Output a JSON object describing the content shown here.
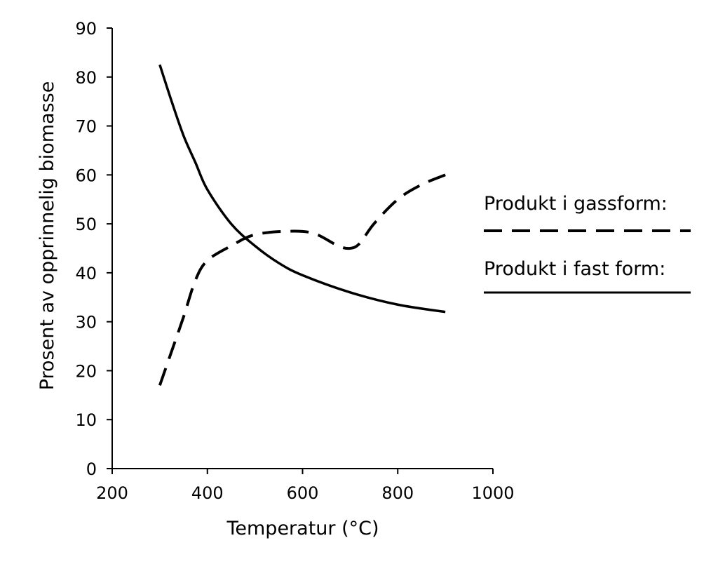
{
  "chart_data": {
    "type": "line",
    "title": "",
    "xlabel": "Temperatur (°C)",
    "ylabel": "Prosent av opprinnelig biomasse",
    "xlim": [
      200,
      1000
    ],
    "ylim": [
      0,
      90
    ],
    "xticks": [
      200,
      400,
      600,
      800,
      1000
    ],
    "yticks": [
      0,
      10,
      20,
      30,
      40,
      50,
      60,
      70,
      80,
      90
    ],
    "grid": false,
    "legend_position": "right",
    "series": [
      {
        "name": "Produkt i gassform:",
        "style": "dashed",
        "color": "#000000",
        "x": [
          300,
          325,
          350,
          375,
          400,
          450,
          500,
          575,
          625,
          675,
          700,
          720,
          750,
          800,
          850,
          900
        ],
        "y": [
          17,
          24,
          31,
          38.5,
          42.5,
          45.5,
          47.8,
          48.5,
          48,
          45.5,
          45,
          46,
          50,
          55,
          58,
          60
        ]
      },
      {
        "name": "Produkt i fast form:",
        "style": "solid",
        "color": "#000000",
        "x": [
          300,
          325,
          350,
          375,
          400,
          450,
          500,
          550,
          600,
          700,
          800,
          900
        ],
        "y": [
          82.5,
          75,
          68,
          62.5,
          57,
          50,
          45.5,
          42,
          39.5,
          36,
          33.5,
          32
        ]
      }
    ]
  }
}
